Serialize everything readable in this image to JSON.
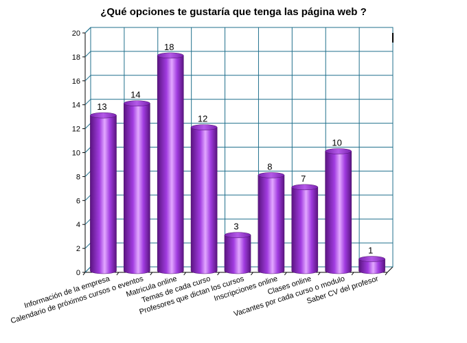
{
  "chart_data": {
    "type": "bar",
    "title": "¿Qué opciones te gustaría que tenga las página web ?",
    "xlabel": "",
    "ylabel": "",
    "ylim": [
      0,
      20
    ],
    "yticks": [
      0,
      2,
      4,
      6,
      8,
      10,
      12,
      14,
      16,
      18,
      20
    ],
    "grid": true,
    "style": "3d-cylinder",
    "colors": {
      "bar": "#9b30d9",
      "bar_light": "#e2a8ff",
      "bar_dark": "#5a1480",
      "grid": "#1f6f8b"
    },
    "categories": [
      "Información  de la empresa",
      "Calendario de próximos cursos o eventos",
      "Matricula online",
      "Temas de cada curso",
      "Profesores que dictan los cursos",
      "Inscripciones online",
      "Clases online",
      "Vacantes por cada curso o modulo",
      "Saber CV del profesor"
    ],
    "values": [
      13,
      14,
      18,
      12,
      3,
      8,
      7,
      10,
      1
    ]
  }
}
